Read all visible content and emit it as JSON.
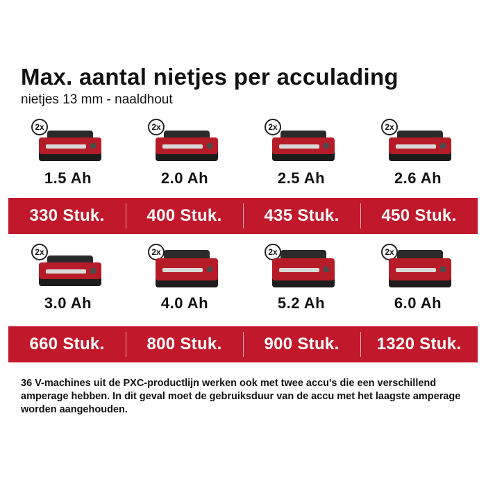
{
  "title": "Max. aantal nietjes per acculading",
  "subtitle": "nietjes 13 mm - naaldhout",
  "quantity_badge": "2x",
  "rows": [
    {
      "items": [
        {
          "ah": "1.5 Ah",
          "count": "330 Stuk.",
          "size": "small"
        },
        {
          "ah": "2.0 Ah",
          "count": "400 Stuk.",
          "size": "small"
        },
        {
          "ah": "2.5 Ah",
          "count": "435 Stuk.",
          "size": "small"
        },
        {
          "ah": "2.6 Ah",
          "count": "450 Stuk.",
          "size": "small"
        }
      ]
    },
    {
      "items": [
        {
          "ah": "3.0 Ah",
          "count": "660 Stuk.",
          "size": "small"
        },
        {
          "ah": "4.0 Ah",
          "count": "800 Stuk.",
          "size": "large"
        },
        {
          "ah": "5.2 Ah",
          "count": "900 Stuk.",
          "size": "large"
        },
        {
          "ah": "6.0 Ah",
          "count": "1320 Stuk.",
          "size": "large"
        }
      ]
    }
  ],
  "note": "36 V-machines uit de PXC-productlijn werken ook met twee accu's die een verschillend amperage hebben. In dit geval moet de gebruiksduur van de accu met het laagste amperage worden aangehouden.",
  "colors": {
    "accent_red": "#c2182b",
    "battery_red": "#b61c28",
    "text": "#111111"
  }
}
